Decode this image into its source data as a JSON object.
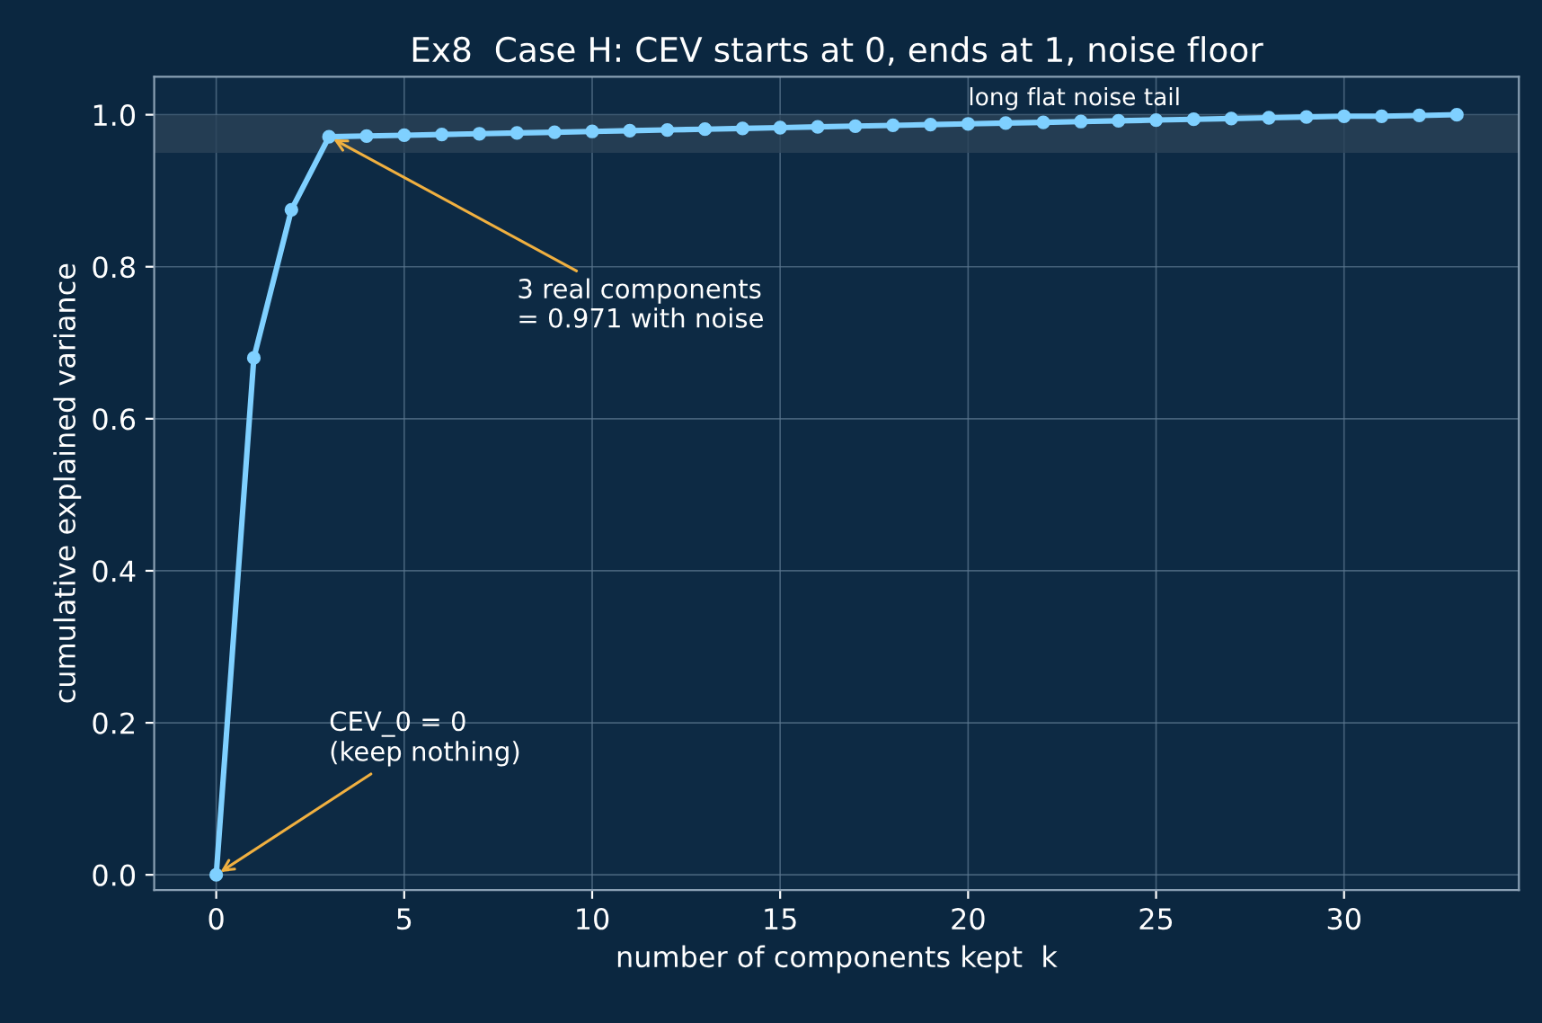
{
  "chart_data": {
    "type": "line",
    "title": "Ex8  Case H: CEV starts at 0, ends at 1, noise floor",
    "xlabel": "number of components kept  k",
    "ylabel": "cumulative explained variance",
    "x": [
      0,
      1,
      2,
      3,
      4,
      5,
      6,
      7,
      8,
      9,
      10,
      11,
      12,
      13,
      14,
      15,
      16,
      17,
      18,
      19,
      20,
      21,
      22,
      23,
      24,
      25,
      26,
      27,
      28,
      29,
      30,
      31,
      32,
      33
    ],
    "series": [
      {
        "color": "#7fd0ff",
        "values": [
          0,
          0.68,
          0.875,
          0.971,
          0.972,
          0.973,
          0.974,
          0.975,
          0.976,
          0.977,
          0.978,
          0.979,
          0.98,
          0.981,
          0.982,
          0.983,
          0.984,
          0.985,
          0.986,
          0.987,
          0.988,
          0.989,
          0.99,
          0.991,
          0.992,
          0.993,
          0.994,
          0.995,
          0.996,
          0.997,
          0.998,
          0.998,
          0.999,
          1.0
        ]
      }
    ],
    "xlim": [
      -1.65,
      34.65
    ],
    "ylim": [
      -0.02,
      1.05
    ],
    "xticks": [
      0,
      5,
      10,
      15,
      20,
      25,
      30
    ],
    "yticks": [
      {
        "value": 0,
        "label": "0.0"
      },
      0.2,
      0.4,
      0.6,
      0.8,
      {
        "value": 1,
        "label": "1.0"
      }
    ],
    "grid": true,
    "marker": "circle",
    "line_style": "solid",
    "bands": [
      {
        "axis": "y",
        "from": 0.95,
        "to": 1.0,
        "label": "long flat noise tail",
        "color": "#2a4258"
      }
    ],
    "annotations": [
      {
        "text": "3 real components\n= 0.971 with noise",
        "x": 3,
        "y": 0.971
      },
      {
        "text": "CEV_0 = 0\n(keep nothing)",
        "x": 0,
        "y": 0
      }
    ]
  }
}
